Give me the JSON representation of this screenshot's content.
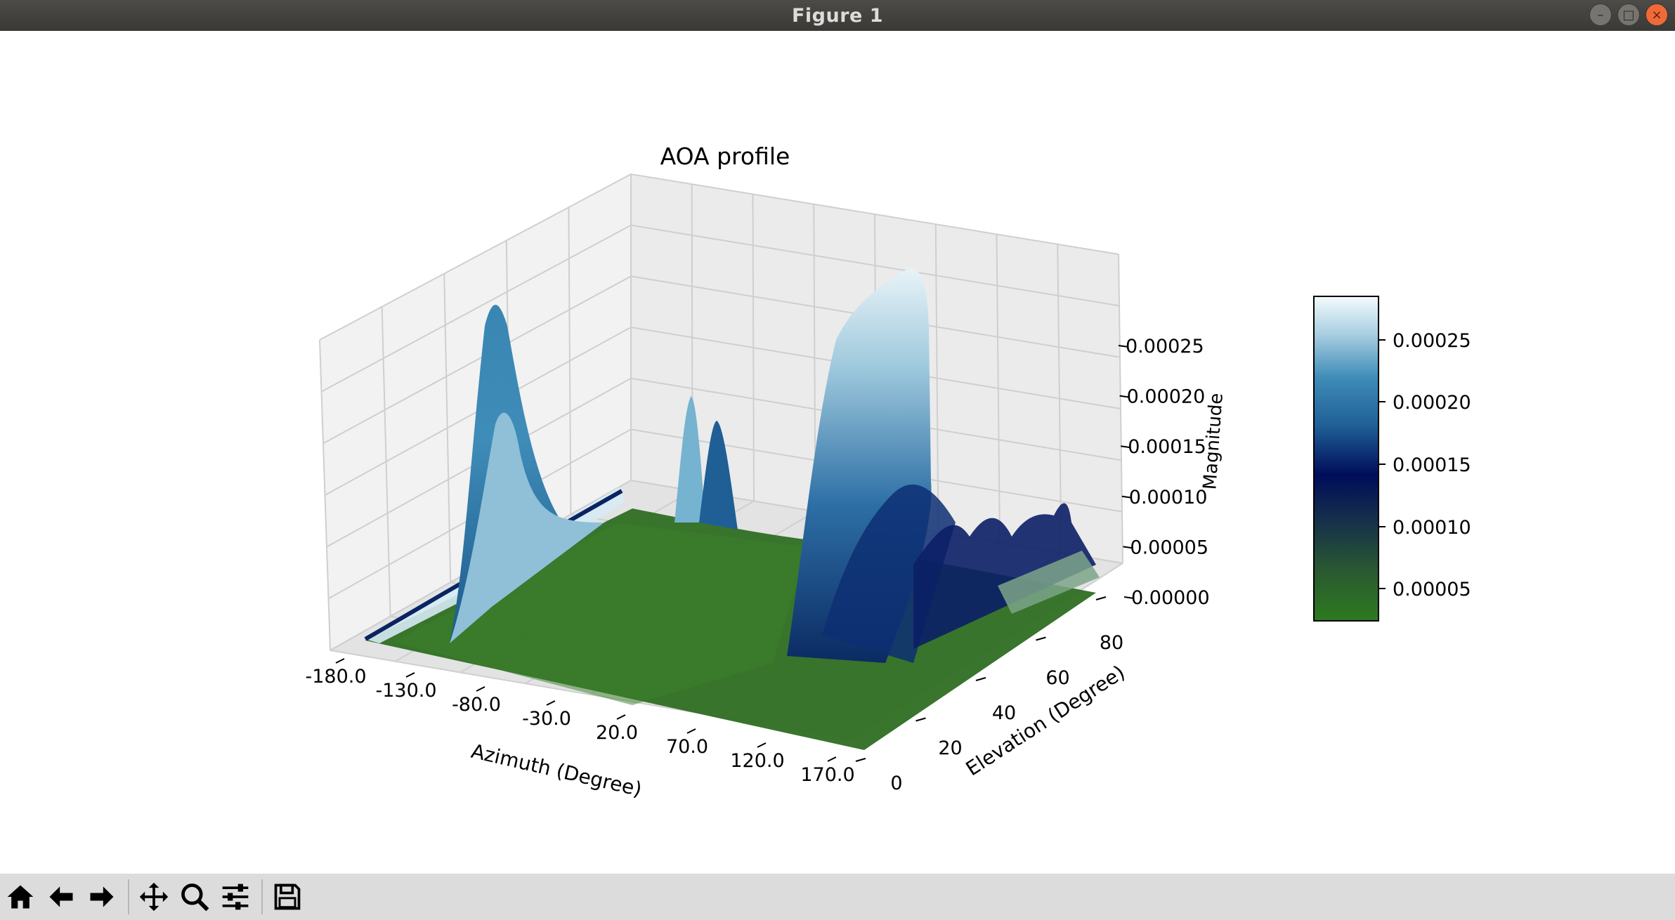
{
  "window": {
    "title": "Figure 1"
  },
  "toolbar": {
    "buttons": [
      {
        "name": "home-icon"
      },
      {
        "name": "back-arrow-icon"
      },
      {
        "name": "forward-arrow-icon"
      },
      {
        "name": "pan-icon"
      },
      {
        "name": "zoom-icon"
      },
      {
        "name": "configure-subplots-icon"
      },
      {
        "name": "save-icon"
      }
    ]
  },
  "chart_data": {
    "type": "surface",
    "title": "AOA profile",
    "xlabel": "Azimuth (Degree)",
    "ylabel": "Elevation (Degree)",
    "zlabel": "Magnitude",
    "x_ticks": [
      "-180.0",
      "-130.0",
      "-80.0",
      "-30.0",
      "20.0",
      "70.0",
      "120.0",
      "170.0"
    ],
    "y_ticks": [
      "0",
      "20",
      "40",
      "60",
      "80"
    ],
    "z_ticks": [
      "0.00000",
      "0.00005",
      "0.00010",
      "0.00015",
      "0.00020",
      "0.00025"
    ],
    "colorbar_ticks": [
      "0.00005",
      "0.00010",
      "0.00015",
      "0.00020",
      "0.00025"
    ],
    "colormap": [
      "#2d7a1f",
      "#17324a",
      "#000d5a",
      "#1f5f96",
      "#3f8cb8",
      "#a6cde0",
      "#f4fbfd"
    ],
    "zlim": [
      0,
      0.00028
    ],
    "peaks": [
      {
        "azimuth": -130,
        "elevation": 75,
        "magnitude": 0.00027
      },
      {
        "azimuth": -60,
        "elevation": 85,
        "magnitude": 0.00019
      },
      {
        "azimuth": -45,
        "elevation": 85,
        "magnitude": 0.00017
      },
      {
        "azimuth": 50,
        "elevation": 80,
        "magnitude": 0.00027
      },
      {
        "azimuth": 90,
        "elevation": 75,
        "magnitude": 0.0001
      }
    ]
  }
}
